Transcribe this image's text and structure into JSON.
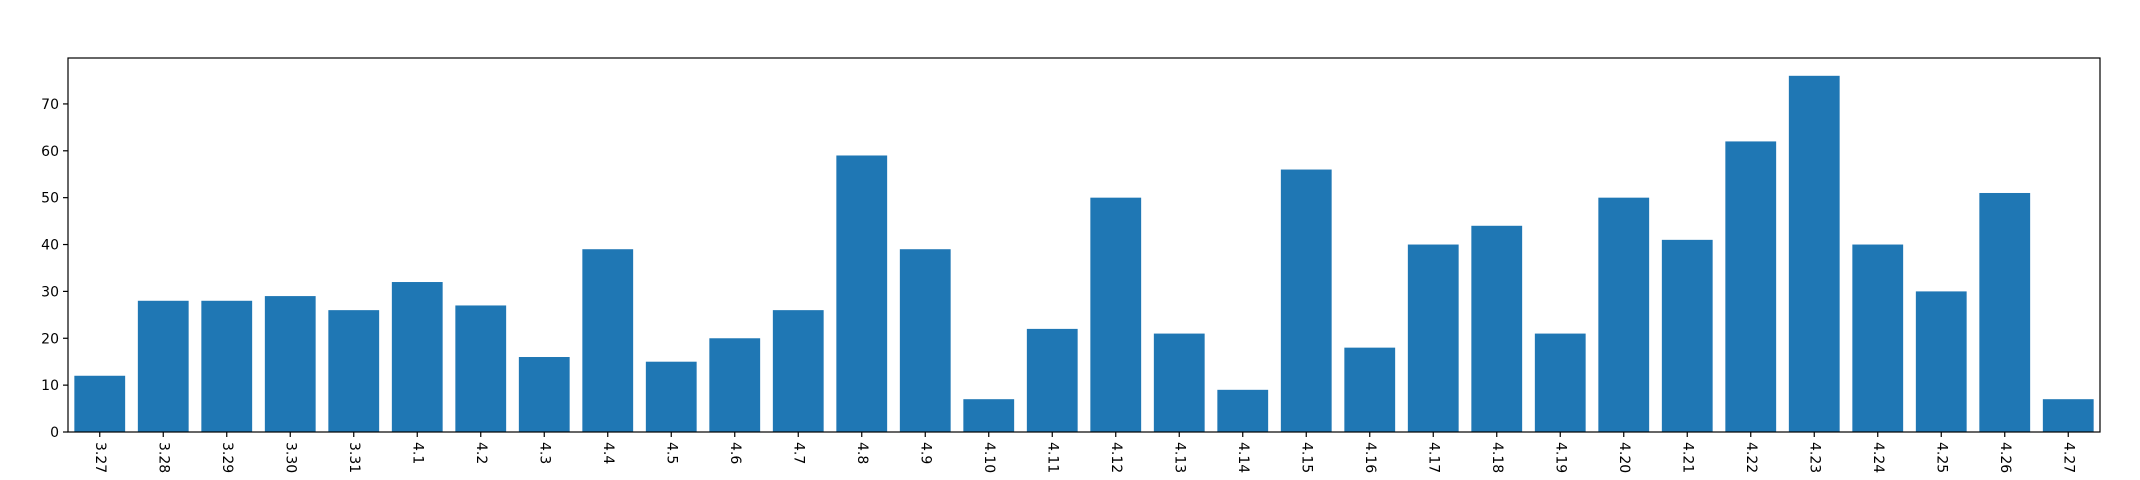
{
  "chart_data": {
    "type": "bar",
    "title": "",
    "xlabel": "",
    "ylabel": "",
    "categories": [
      "3.27",
      "3.28",
      "3.29",
      "3.30",
      "3.31",
      "4.1",
      "4.2",
      "4.3",
      "4.4",
      "4.5",
      "4.6",
      "4.7",
      "4.8",
      "4.9",
      "4.10",
      "4.11",
      "4.12",
      "4.13",
      "4.14",
      "4.15",
      "4.16",
      "4.17",
      "4.18",
      "4.19",
      "4.20",
      "4.21",
      "4.22",
      "4.23",
      "4.24",
      "4.25",
      "4.26",
      "4.27"
    ],
    "values": [
      12,
      28,
      28,
      29,
      26,
      32,
      27,
      16,
      39,
      15,
      20,
      26,
      59,
      39,
      7,
      22,
      50,
      21,
      9,
      56,
      18,
      40,
      44,
      21,
      50,
      41,
      62,
      76,
      40,
      30,
      51,
      7
    ],
    "ylim": [
      0,
      79.8
    ],
    "yticks": [
      0,
      10,
      20,
      30,
      40,
      50,
      60,
      70
    ],
    "xtick_rotation": "-90 degrees",
    "grid": false,
    "legend": "none",
    "bar_color": "#1f77b4"
  }
}
